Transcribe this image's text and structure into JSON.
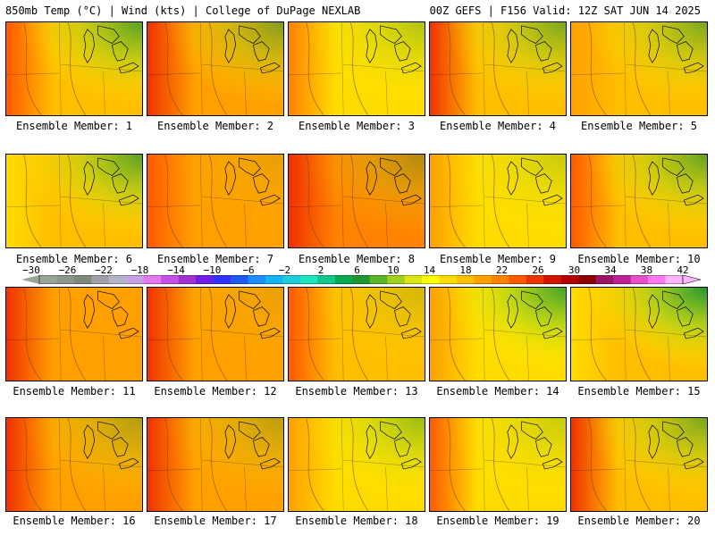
{
  "header": {
    "left_title": "850mb Temp (°C) | Wind (kts) | College of DuPage NEXLAB",
    "right_title": "00Z GEFS | F156 Valid: 12Z SAT JUN 14 2025"
  },
  "colorbar": {
    "labels": [
      "−30",
      "−26",
      "−22",
      "−18",
      "−14",
      "−10",
      "−6",
      "−2",
      "2",
      "6",
      "10",
      "14",
      "18",
      "22",
      "26",
      "30",
      "34",
      "38",
      "42"
    ],
    "colors": [
      "#9aa59a",
      "#8c968c",
      "#7f8a7f",
      "#a0a0a8",
      "#b4b4c8",
      "#c8a0e6",
      "#e678f0",
      "#c850e6",
      "#a032d2",
      "#6e1ee6",
      "#3232ff",
      "#1e5af0",
      "#1e8cff",
      "#14b4f0",
      "#1ecddc",
      "#1ee6be",
      "#14c88c",
      "#0aaa50",
      "#1e9632",
      "#5ab428",
      "#a0d21e",
      "#dce614",
      "#ffff00",
      "#ffdc00",
      "#ffbe00",
      "#ffa000",
      "#ff8200",
      "#ff5a00",
      "#f03200",
      "#d21400",
      "#b40000",
      "#8c0000",
      "#9b1464",
      "#be1e96",
      "#e650c8",
      "#ff78f0",
      "#ffb4ff"
    ]
  },
  "panels": [
    {
      "label": "Ensemble Member: 1",
      "base": "#ffbe00",
      "west": "#ff5a00",
      "green": 0.75
    },
    {
      "label": "Ensemble Member: 2",
      "base": "#ffa000",
      "west": "#f03200",
      "green": 0.55
    },
    {
      "label": "Ensemble Member: 3",
      "base": "#ffdc00",
      "west": "#ff8200",
      "green": 0.35
    },
    {
      "label": "Ensemble Member: 4",
      "base": "#ffbe00",
      "west": "#f03200",
      "green": 0.6
    },
    {
      "label": "Ensemble Member: 5",
      "base": "#ffbe00",
      "west": "#ffa000",
      "green": 0.6
    },
    {
      "label": "Ensemble Member: 6",
      "base": "#ffbe00",
      "west": "#ffdc00",
      "green": 0.75
    },
    {
      "label": "Ensemble Member: 7",
      "base": "#ffa000",
      "west": "#ff5a00",
      "green": 0.1
    },
    {
      "label": "Ensemble Member: 8",
      "base": "#ff8200",
      "west": "#f03200",
      "green": 0.35
    },
    {
      "label": "Ensemble Member: 9",
      "base": "#ffdc00",
      "west": "#ffa000",
      "green": 0.25
    },
    {
      "label": "Ensemble Member: 10",
      "base": "#ffbe00",
      "west": "#ff5a00",
      "green": 0.7
    },
    {
      "label": "Ensemble Member: 11",
      "base": "#ffa000",
      "west": "#f03200",
      "green": 0.0
    },
    {
      "label": "Ensemble Member: 12",
      "base": "#ffa000",
      "west": "#f03200",
      "green": 0.1
    },
    {
      "label": "Ensemble Member: 13",
      "base": "#ffbe00",
      "west": "#ff5a00",
      "green": 0.2
    },
    {
      "label": "Ensemble Member: 14",
      "base": "#ffdc00",
      "west": "#ffa000",
      "green": 0.85
    },
    {
      "label": "Ensemble Member: 15",
      "base": "#ffbe00",
      "west": "#ffdc00",
      "green": 1.0
    },
    {
      "label": "Ensemble Member: 16",
      "base": "#ffa000",
      "west": "#f03200",
      "green": 0.35
    },
    {
      "label": "Ensemble Member: 17",
      "base": "#ffa000",
      "west": "#f03200",
      "green": 0.3
    },
    {
      "label": "Ensemble Member: 18",
      "base": "#ffdc00",
      "west": "#ffa000",
      "green": 0.45
    },
    {
      "label": "Ensemble Member: 19",
      "base": "#ffdc00",
      "west": "#ff5a00",
      "green": 0.25
    },
    {
      "label": "Ensemble Member: 20",
      "base": "#ffbe00",
      "west": "#f03200",
      "green": 0.6
    }
  ]
}
